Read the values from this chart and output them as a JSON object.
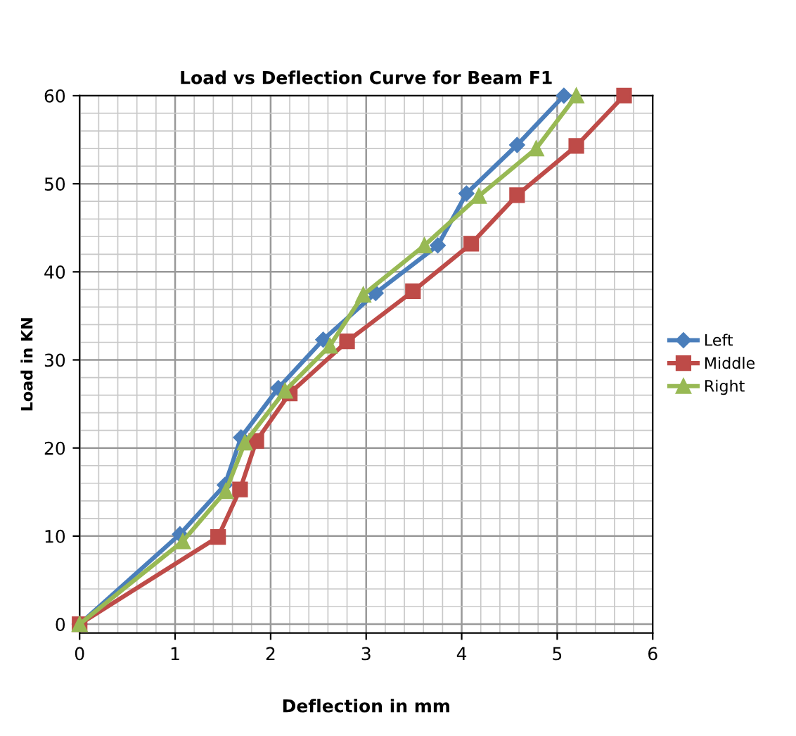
{
  "chart_data": {
    "type": "line",
    "title": "Load vs Deflection Curve for Beam F1",
    "xlabel": "Deflection in mm",
    "ylabel": "Load in KN",
    "xlim": [
      0,
      6
    ],
    "xticks": [
      0,
      1,
      2,
      3,
      4,
      5,
      6
    ],
    "ylim": [
      -1,
      60
    ],
    "yticks": [
      0,
      10,
      20,
      30,
      40,
      50,
      60
    ],
    "grid": true,
    "legend": "right",
    "line_style": "solid",
    "series": [
      {
        "name": "Left",
        "color": "#4a7ebb",
        "marker": "diamond",
        "x": [
          0,
          1.05,
          1.52,
          1.69,
          2.08,
          2.55,
          3.1,
          3.75,
          4.05,
          4.58,
          5.07
        ],
        "values": [
          0,
          10.2,
          15.8,
          21.2,
          26.8,
          32.3,
          37.6,
          43,
          48.9,
          54.4,
          60
        ]
      },
      {
        "name": "Middle",
        "color": "#be4b48",
        "marker": "square",
        "x": [
          0,
          1.45,
          1.68,
          1.85,
          2.2,
          2.8,
          3.49,
          4.1,
          4.58,
          5.2,
          5.7
        ],
        "values": [
          0,
          9.9,
          15.3,
          20.8,
          26.2,
          32.1,
          37.8,
          43.2,
          48.7,
          54.3,
          60
        ]
      },
      {
        "name": "Right",
        "color": "#98b954",
        "marker": "triangle",
        "x": [
          0,
          1.08,
          1.53,
          1.73,
          2.15,
          2.62,
          2.97,
          3.61,
          4.18,
          4.78,
          5.2
        ],
        "values": [
          0,
          9.4,
          15.1,
          20.6,
          26.5,
          31.6,
          37.4,
          43,
          48.6,
          54,
          60
        ]
      }
    ]
  }
}
